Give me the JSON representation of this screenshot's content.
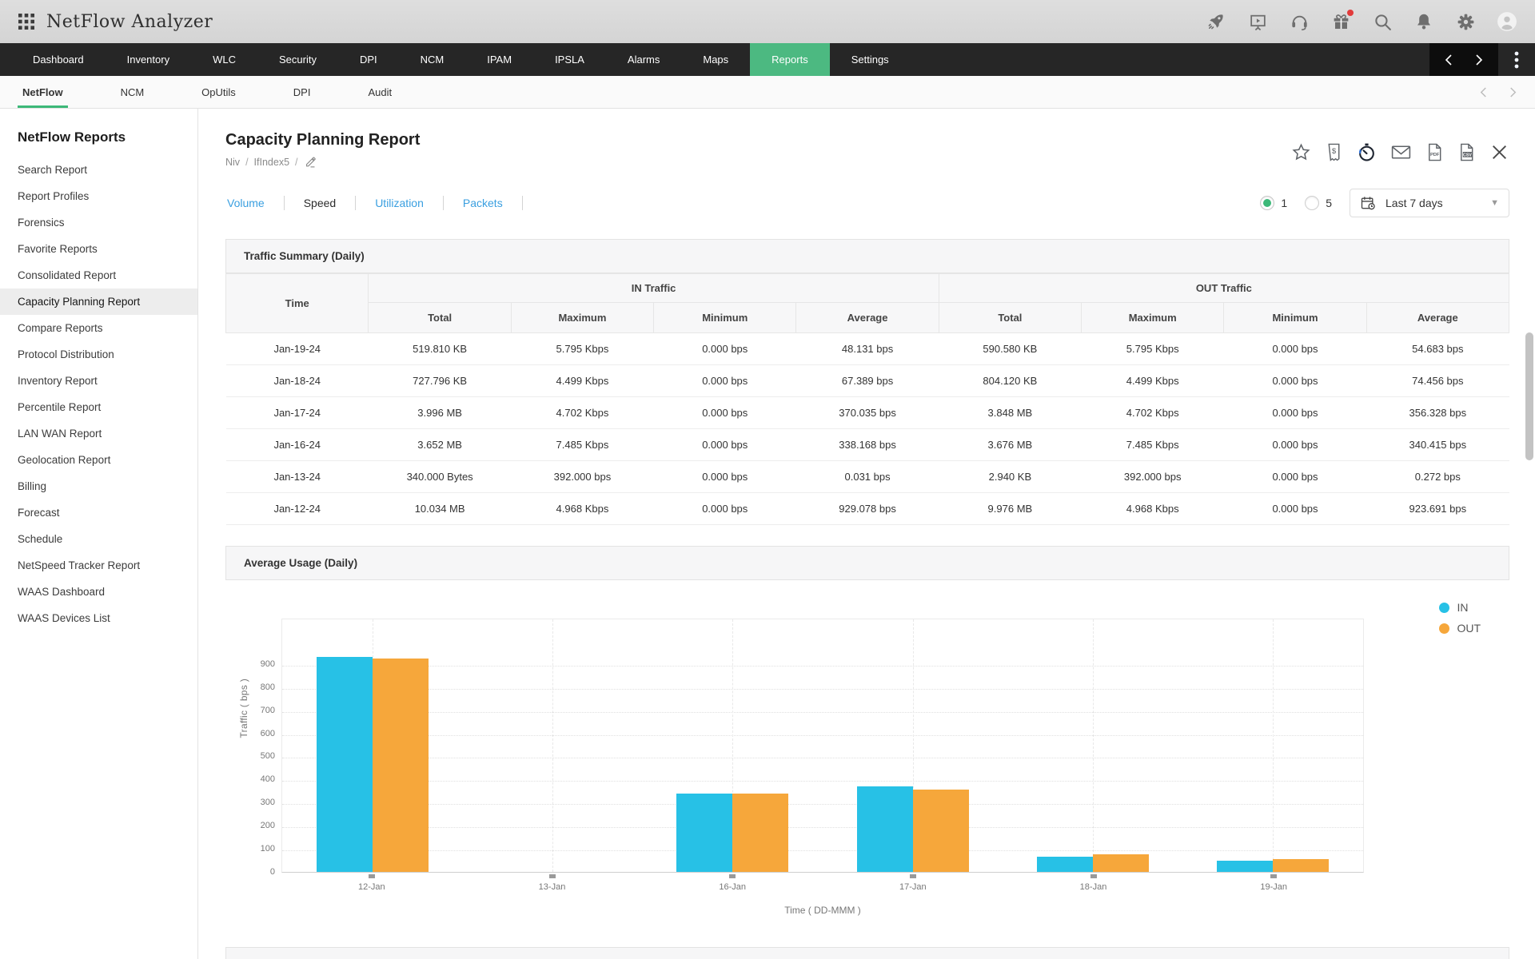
{
  "app": {
    "title": "NetFlow Analyzer"
  },
  "topbar": {
    "icons": [
      "rocket-icon",
      "presentation-icon",
      "headset-icon",
      "gift-icon",
      "search-icon",
      "bell-icon",
      "gear-icon",
      "avatar"
    ]
  },
  "main_nav": {
    "items": [
      "Dashboard",
      "Inventory",
      "WLC",
      "Security",
      "DPI",
      "NCM",
      "IPAM",
      "IPSLA",
      "Alarms",
      "Maps",
      "Reports",
      "Settings"
    ],
    "active": "Reports"
  },
  "sub_nav": {
    "items": [
      "NetFlow",
      "NCM",
      "OpUtils",
      "DPI",
      "Audit"
    ],
    "active": "NetFlow"
  },
  "sidebar": {
    "title": "NetFlow Reports",
    "items": [
      "Search Report",
      "Report Profiles",
      "Forensics",
      "Favorite Reports",
      "Consolidated Report",
      "Capacity Planning Report",
      "Compare Reports",
      "Protocol Distribution",
      "Inventory Report",
      "Percentile Report",
      "LAN WAN Report",
      "Geolocation Report",
      "Billing",
      "Forecast",
      "Schedule",
      "NetSpeed Tracker Report",
      "WAAS Dashboard",
      "WAAS Devices List"
    ],
    "active": "Capacity Planning Report"
  },
  "page": {
    "title": "Capacity Planning Report",
    "breadcrumb": [
      "Niv",
      "IfIndex5"
    ],
    "breadcrumb_separator": "/",
    "action_icons": [
      "star-icon",
      "invoice-icon",
      "timer-icon",
      "mail-icon",
      "pdf-export-icon",
      "csv-export-icon",
      "close-icon"
    ],
    "tabs": [
      "Volume",
      "Speed",
      "Utilization",
      "Packets"
    ],
    "active_tab": "Speed",
    "interval_options": [
      "1",
      "5"
    ],
    "interval_selected": "1",
    "date_range": "Last 7 days"
  },
  "traffic_summary": {
    "title": "Traffic Summary (Daily)",
    "time_header": "Time",
    "groups": [
      "IN Traffic",
      "OUT Traffic"
    ],
    "sub_columns": [
      "Total",
      "Maximum",
      "Minimum",
      "Average"
    ],
    "rows": [
      [
        "Jan-19-24",
        "519.810 KB",
        "5.795 Kbps",
        "0.000 bps",
        "48.131 bps",
        "590.580 KB",
        "5.795 Kbps",
        "0.000 bps",
        "54.683 bps"
      ],
      [
        "Jan-18-24",
        "727.796 KB",
        "4.499 Kbps",
        "0.000 bps",
        "67.389 bps",
        "804.120 KB",
        "4.499 Kbps",
        "0.000 bps",
        "74.456 bps"
      ],
      [
        "Jan-17-24",
        "3.996 MB",
        "4.702 Kbps",
        "0.000 bps",
        "370.035 bps",
        "3.848 MB",
        "4.702 Kbps",
        "0.000 bps",
        "356.328 bps"
      ],
      [
        "Jan-16-24",
        "3.652 MB",
        "7.485 Kbps",
        "0.000 bps",
        "338.168 bps",
        "3.676 MB",
        "7.485 Kbps",
        "0.000 bps",
        "340.415 bps"
      ],
      [
        "Jan-13-24",
        "340.000 Bytes",
        "392.000 bps",
        "0.000 bps",
        "0.031 bps",
        "2.940 KB",
        "392.000 bps",
        "0.000 bps",
        "0.272 bps"
      ],
      [
        "Jan-12-24",
        "10.034 MB",
        "4.968 Kbps",
        "0.000 bps",
        "929.078 bps",
        "9.976 MB",
        "4.968 Kbps",
        "0.000 bps",
        "923.691 bps"
      ]
    ]
  },
  "chart_data": {
    "type": "bar",
    "title": "Average Usage (Daily)",
    "categories": [
      "12-Jan",
      "13-Jan",
      "16-Jan",
      "17-Jan",
      "18-Jan",
      "19-Jan"
    ],
    "series": [
      {
        "name": "IN",
        "color": "#27c1e6",
        "values": [
          929.078,
          0.031,
          338.168,
          370.035,
          67.389,
          48.131
        ]
      },
      {
        "name": "OUT",
        "color": "#f6a73b",
        "values": [
          923.691,
          0.272,
          340.415,
          356.328,
          74.456,
          54.683
        ]
      }
    ],
    "xlabel": "Time ( DD-MMM )",
    "ylabel": "Traffic ( bps )",
    "ylim": [
      0,
      1100
    ],
    "yticks": [
      0,
      100,
      200,
      300,
      400,
      500,
      600,
      700,
      800,
      900
    ],
    "grid": true,
    "legend_position": "top-right"
  },
  "colors": {
    "nav_active_green": "#4cb981",
    "subnav_underline_green": "#3cb878",
    "link_blue": "#3a9fe0",
    "bar_in": "#27c1e6",
    "bar_out": "#f6a73b",
    "radio_green": "#3cb878",
    "notification_red": "#e23b3b"
  }
}
